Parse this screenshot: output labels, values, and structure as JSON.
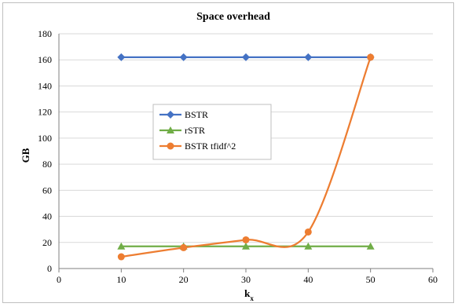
{
  "chart_data": {
    "type": "line",
    "title": "Space overhead",
    "xlabel": "k",
    "xlabel_subscript": "x",
    "ylabel": "GB",
    "xlim": [
      0,
      60
    ],
    "ylim": [
      0,
      180
    ],
    "x_ticks": [
      0,
      10,
      20,
      30,
      40,
      50,
      60
    ],
    "y_ticks": [
      0,
      20,
      40,
      60,
      80,
      100,
      120,
      140,
      160,
      180
    ],
    "grid": "horizontal",
    "legend_position": "inside-left",
    "series": [
      {
        "name": "BSTR",
        "color": "#4472c4",
        "marker": "diamond",
        "smooth": false,
        "x": [
          10,
          20,
          30,
          40,
          50
        ],
        "y": [
          162,
          162,
          162,
          162,
          162
        ]
      },
      {
        "name": "rSTR",
        "color": "#70ad47",
        "marker": "triangle",
        "smooth": false,
        "x": [
          10,
          20,
          30,
          40,
          50
        ],
        "y": [
          17,
          17,
          17,
          17,
          17
        ]
      },
      {
        "name": "BSTR tfidf^2",
        "color": "#ed7d31",
        "marker": "circle",
        "smooth": true,
        "x": [
          10,
          20,
          30,
          40,
          50
        ],
        "y": [
          9,
          16,
          22,
          28,
          162
        ]
      }
    ]
  }
}
